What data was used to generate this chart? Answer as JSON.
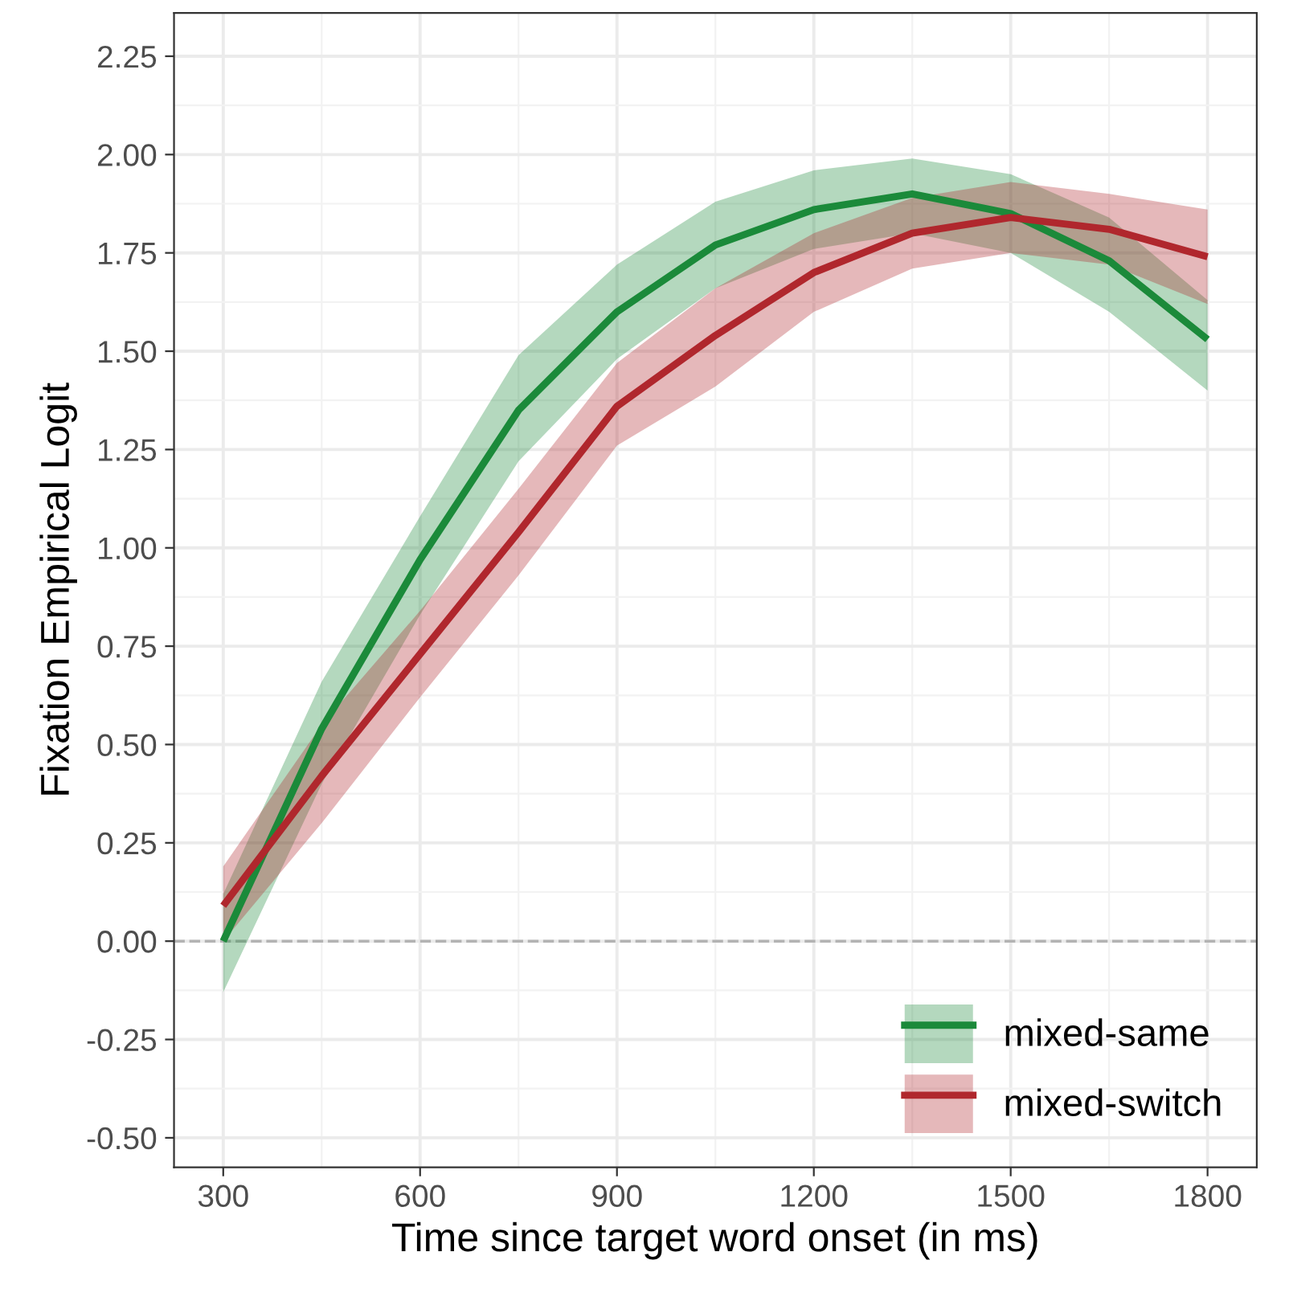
{
  "chart_data": {
    "type": "line",
    "xlabel": "Time since target word onset (in ms)",
    "ylabel": "Fixation Empirical Logit",
    "x": [
      300,
      450,
      600,
      750,
      900,
      1050,
      1200,
      1350,
      1500,
      1650,
      1800
    ],
    "series": [
      {
        "name": "mixed-same",
        "color": "#1b8a3a",
        "values": [
          0.0,
          0.54,
          0.97,
          1.35,
          1.6,
          1.77,
          1.86,
          1.9,
          1.85,
          1.73,
          1.53
        ],
        "lower": [
          -0.13,
          0.4,
          0.83,
          1.22,
          1.48,
          1.66,
          1.76,
          1.8,
          1.75,
          1.6,
          1.4
        ],
        "upper": [
          0.12,
          0.66,
          1.08,
          1.49,
          1.72,
          1.88,
          1.96,
          1.99,
          1.95,
          1.84,
          1.63
        ]
      },
      {
        "name": "mixed-switch",
        "color": "#b0272d",
        "values": [
          0.09,
          0.42,
          0.73,
          1.04,
          1.36,
          1.54,
          1.7,
          1.8,
          1.84,
          1.81,
          1.74
        ],
        "lower": [
          0.0,
          0.3,
          0.62,
          0.93,
          1.26,
          1.41,
          1.6,
          1.71,
          1.75,
          1.72,
          1.62
        ],
        "upper": [
          0.19,
          0.55,
          0.84,
          1.15,
          1.47,
          1.66,
          1.8,
          1.89,
          1.93,
          1.9,
          1.86
        ]
      }
    ],
    "xlim": [
      225,
      1875
    ],
    "xticks": [
      300,
      600,
      900,
      1200,
      1500,
      1800
    ],
    "ylim": [
      -0.575,
      2.36
    ],
    "yticks": [
      {
        "value": -0.5,
        "label": "-0.50"
      },
      {
        "value": -0.25,
        "label": "-0.25"
      },
      {
        "value": 0,
        "label": "0.00"
      },
      {
        "value": 0.25,
        "label": "0.25"
      },
      {
        "value": 0.5,
        "label": "0.50"
      },
      {
        "value": 0.75,
        "label": "0.75"
      },
      {
        "value": 1.0,
        "label": "1.00"
      },
      {
        "value": 1.25,
        "label": "1.25"
      },
      {
        "value": 1.5,
        "label": "1.50"
      },
      {
        "value": 1.75,
        "label": "1.75"
      },
      {
        "value": 2.0,
        "label": "2.00"
      },
      {
        "value": 2.25,
        "label": "2.25"
      }
    ],
    "ref_lines": [
      {
        "axis": "y",
        "value": 0,
        "color": "#b3b3b3",
        "line_style": "dashed"
      }
    ],
    "grid": true,
    "legend": "bottom right",
    "marker": "none",
    "line_style": "solid"
  }
}
